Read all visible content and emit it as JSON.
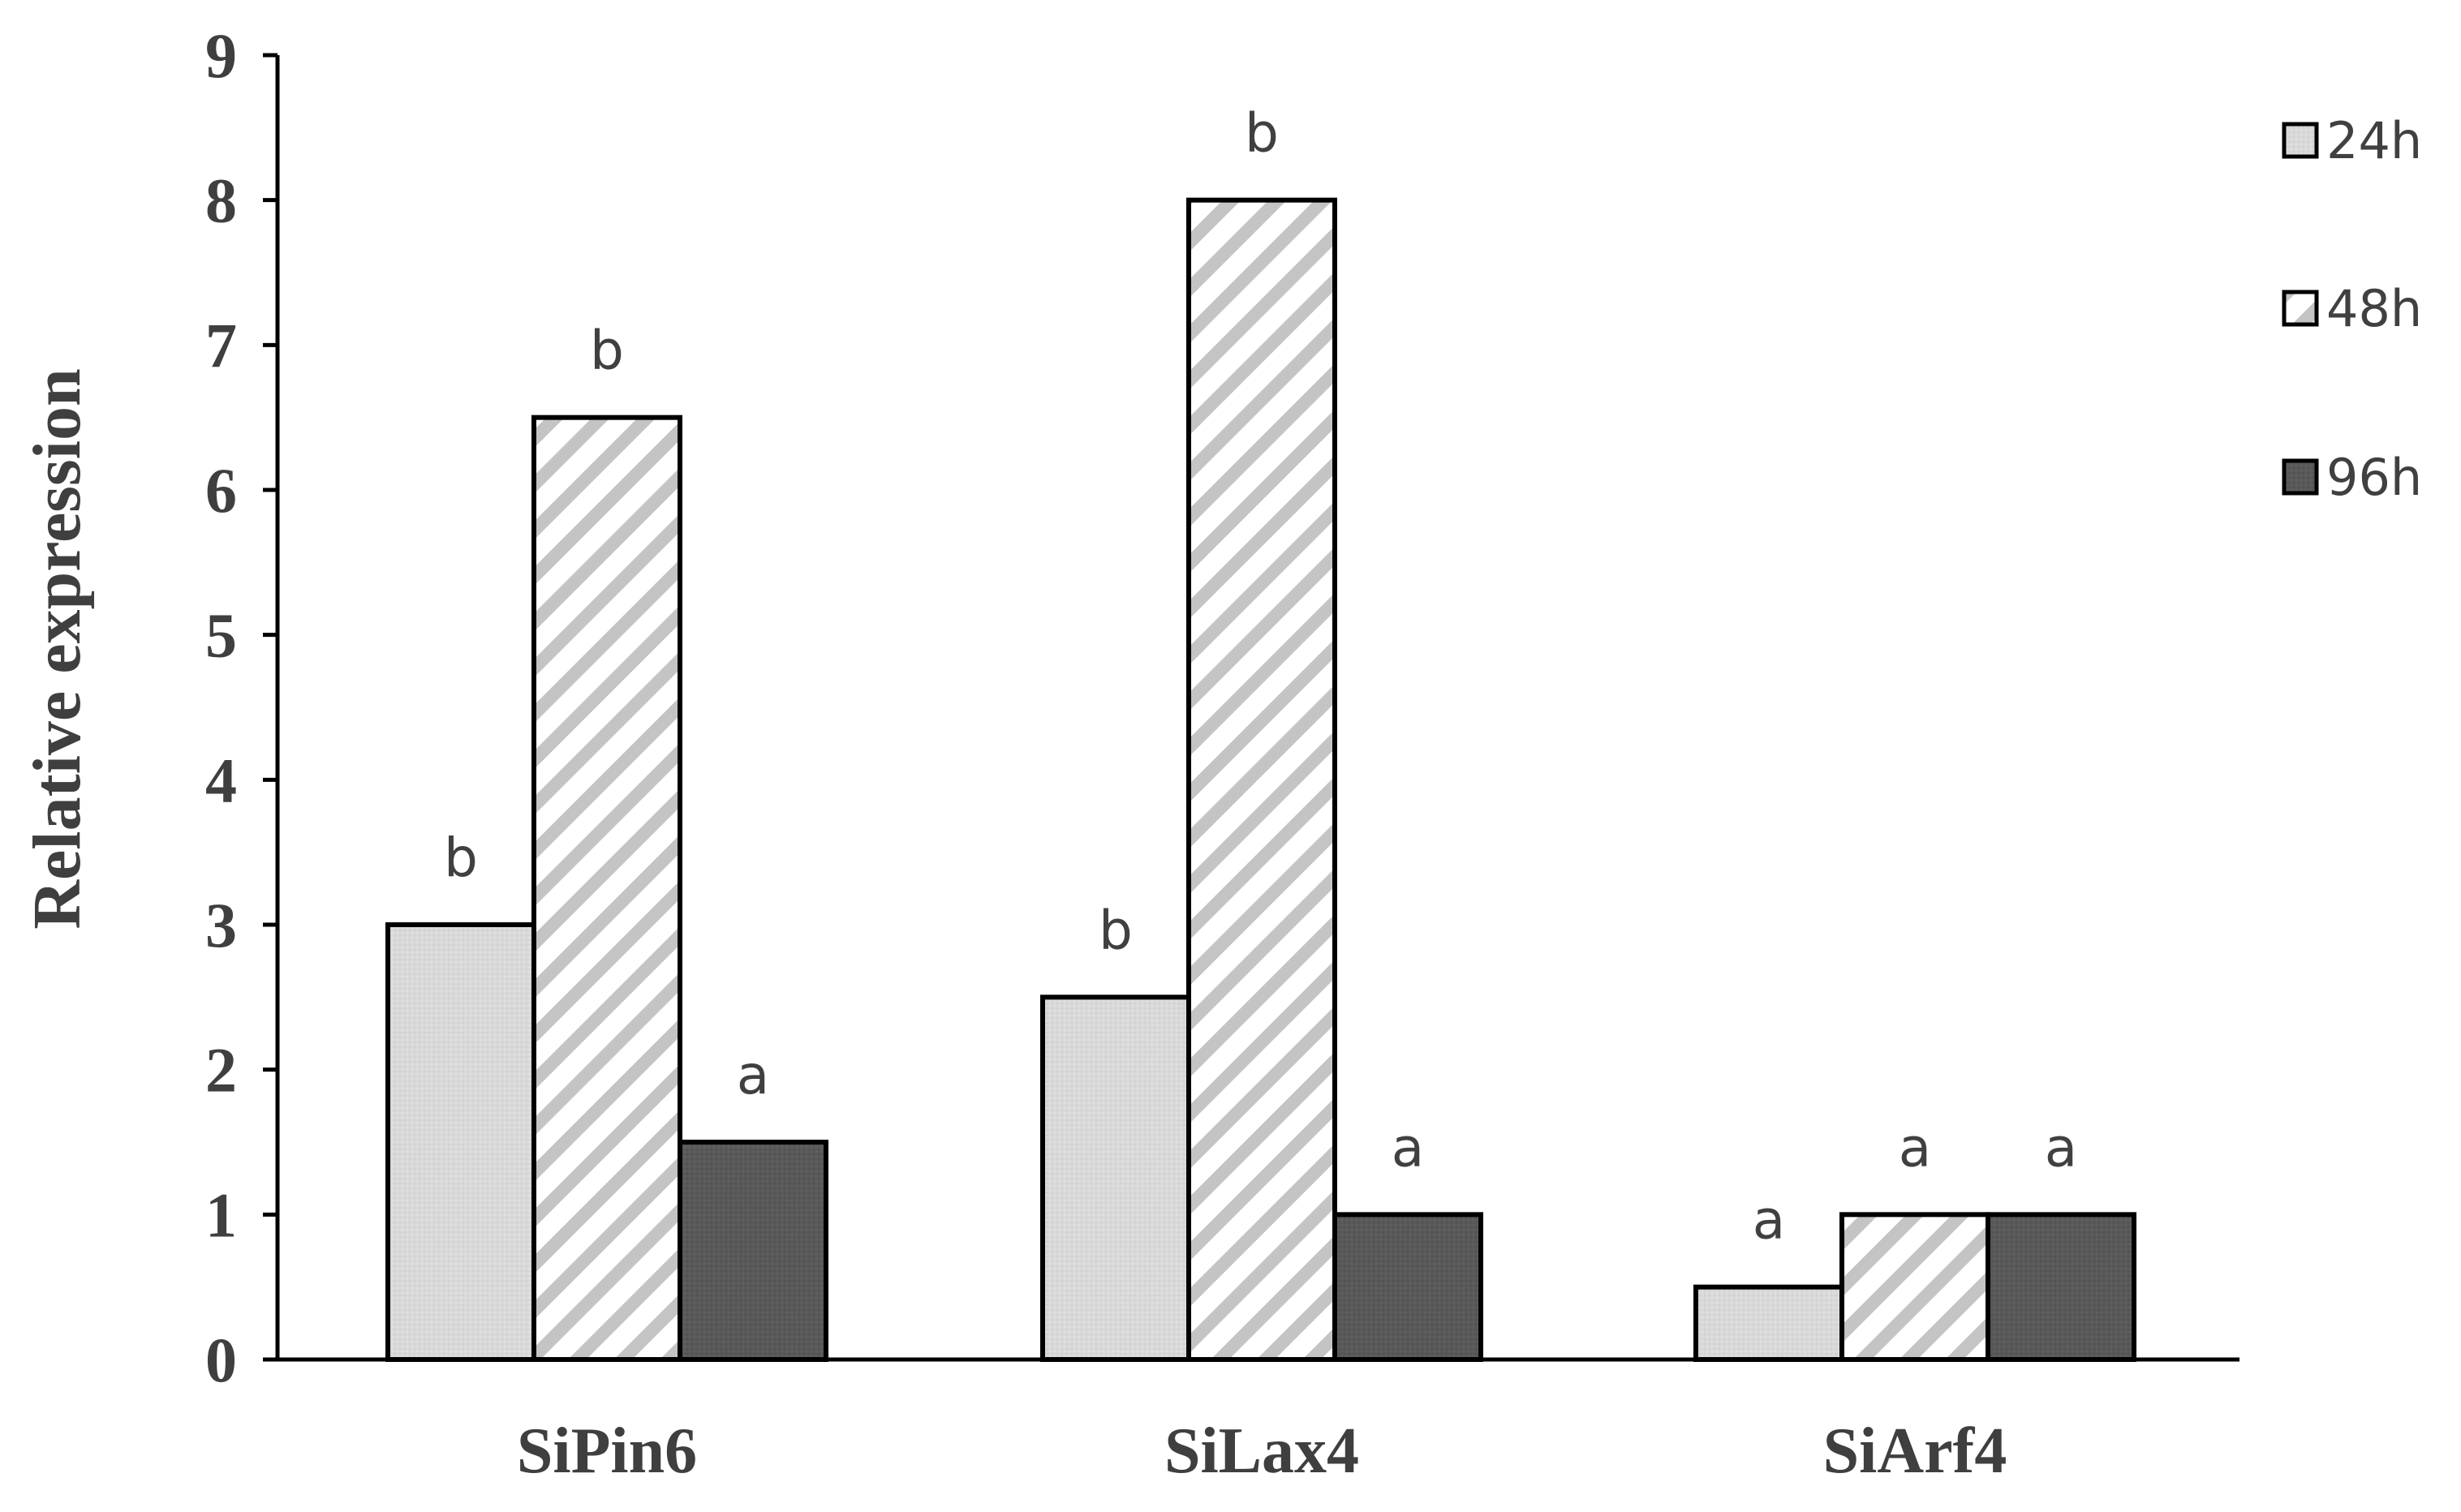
{
  "chart_data": {
    "type": "bar",
    "title": "",
    "xlabel": "",
    "ylabel": "Relative expression",
    "ylim": [
      0,
      9
    ],
    "yticks": [
      0,
      1,
      2,
      3,
      4,
      5,
      6,
      7,
      8,
      9
    ],
    "grid": false,
    "legend_position": "right",
    "categories": [
      "SiPin6",
      "SiLax4",
      "SiArf4"
    ],
    "series": [
      {
        "name": "24h",
        "pattern": "light-gray-solid",
        "fill": "#d9d9d9",
        "values": [
          3,
          2.5,
          0.5
        ],
        "labels": [
          "b",
          "b",
          "a"
        ]
      },
      {
        "name": "48h",
        "pattern": "diagonal-stripes",
        "fill": "#c8c8c8",
        "values": [
          6.5,
          8,
          1
        ],
        "labels": [
          "b",
          "b",
          "a"
        ]
      },
      {
        "name": "96h",
        "pattern": "dark-gray-solid",
        "fill": "#595959",
        "values": [
          1.5,
          1,
          1
        ],
        "labels": [
          "a",
          "a",
          "a"
        ]
      }
    ],
    "colors": {
      "axis": "#000000",
      "text": "#3f3f3f",
      "bar_outline": "#000000"
    }
  }
}
